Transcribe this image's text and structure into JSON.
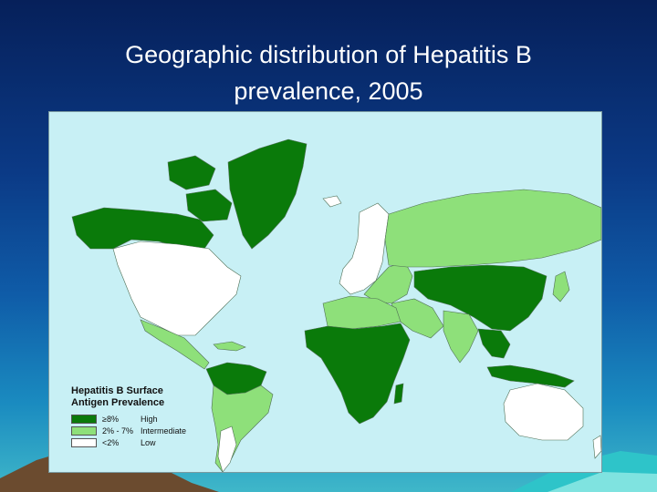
{
  "title_line1": "Geographic distribution of Hepatitis B",
  "title_line2": "prevalence, 2005",
  "legend": {
    "title_line1": "Hepatitis B Surface",
    "title_line2": "Antigen Prevalence",
    "items": [
      {
        "range": "≥8%",
        "label": "High",
        "color": "#0a7a0a"
      },
      {
        "range": "2% - 7%",
        "label": "Intermediate",
        "color": "#8ee07a"
      },
      {
        "range": "<2%",
        "label": "Low",
        "color": "#ffffff"
      }
    ]
  },
  "colors": {
    "ocean": "#c8f0f5",
    "high": "#0a7a0a",
    "intermediate": "#8ee07a",
    "low": "#ffffff",
    "border": "#4f6f55"
  }
}
